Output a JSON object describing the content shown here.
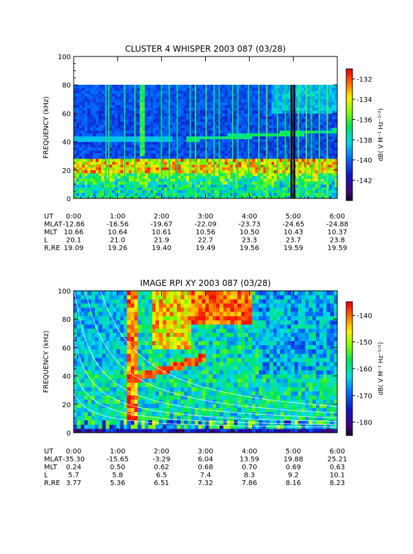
{
  "chart_data": [
    {
      "type": "heatmap",
      "title": "CLUSTER 4 WHISPER 2003 087 (03/28)",
      "ylabel": "FREQUENCY (kHz)",
      "ylim": [
        0,
        100
      ],
      "yticks": [
        "0",
        "20",
        "40",
        "60",
        "80",
        "100"
      ],
      "xticks": [
        "0:00",
        "1:00",
        "2:00",
        "3:00",
        "4:00",
        "5:00",
        "6:00"
      ],
      "data_fmax": 80,
      "colorbar": {
        "label": "dB( V M⁻¹ Hz⁻¹ᐟ²)",
        "min": -144,
        "max": -131,
        "ticks": [
          "-132",
          "-134",
          "-136",
          "-138",
          "-140",
          "-142"
        ]
      },
      "ephemeris": [
        {
          "label": "UT",
          "values": [
            "0:00",
            "1:00",
            "2:00",
            "3:00",
            "4:00",
            "5:00",
            "6:00"
          ]
        },
        {
          "label": "MLAT",
          "values": [
            "-12.86",
            "-16.56",
            "-19.67",
            "-22.09",
            "-23.73",
            "-24.65",
            "-24.88"
          ]
        },
        {
          "label": "MLT",
          "values": [
            "10.66",
            "10.64",
            "10.61",
            "10.56",
            "10.50",
            "10.43",
            "10.37"
          ]
        },
        {
          "label": "L",
          "values": [
            "20.1",
            "21.0",
            "21.9",
            "22.7",
            "23.3",
            "23.7",
            "23.8"
          ]
        },
        {
          "label": "R,RE",
          "values": [
            "19.09",
            "19.26",
            "19.40",
            "19.49",
            "19.56",
            "19.59",
            "19.59"
          ]
        }
      ]
    },
    {
      "type": "heatmap",
      "title": "IMAGE RPI XY 2003 087 (03/28)",
      "ylabel": "FREQUENCY (kHz)",
      "ylim": [
        0,
        100
      ],
      "yticks": [
        "0",
        "20",
        "40",
        "60",
        "80",
        "100"
      ],
      "xticks": [
        "0:00",
        "1:00",
        "2:00",
        "3:00",
        "4:00",
        "5:00",
        "6:00"
      ],
      "data_fmax": 100,
      "colorbar": {
        "label": "dB( V M⁻¹ Hz⁻¹ᐟ²)",
        "min": -185,
        "max": -135,
        "ticks": [
          "-140",
          "-150",
          "-160",
          "-170",
          "-180"
        ]
      },
      "ephemeris": [
        {
          "label": "UT",
          "values": [
            "0:00",
            "1:00",
            "2:00",
            "3:00",
            "4:00",
            "5:00",
            "6:00"
          ]
        },
        {
          "label": "MLAT",
          "values": [
            "-35.30",
            "-15.65",
            "-3.29",
            "6.04",
            "13.59",
            "19.88",
            "25.21"
          ]
        },
        {
          "label": "MLT",
          "values": [
            "0.24",
            "0.50",
            "0.62",
            "0.68",
            "0.70",
            "0.69",
            "0.63"
          ]
        },
        {
          "label": "L",
          "values": [
            "5.7",
            "5.8",
            "6.5",
            "7.4",
            "8.3",
            "9.2",
            "10.1"
          ]
        },
        {
          "label": "R,RE",
          "values": [
            "3.77",
            "5.36",
            "6.51",
            "7.32",
            "7.86",
            "8.16",
            "8.23"
          ]
        }
      ]
    }
  ]
}
